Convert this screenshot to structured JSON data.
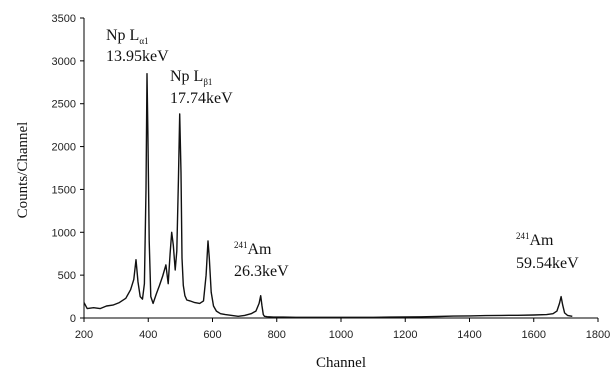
{
  "chart_data": {
    "type": "line",
    "xlabel": "Channel",
    "ylabel": "Counts/Channel",
    "xlim": [
      200,
      1800
    ],
    "ylim": [
      0,
      3500
    ],
    "xticks": [
      200,
      400,
      600,
      800,
      1000,
      1200,
      1400,
      1600,
      1800
    ],
    "yticks": [
      0,
      500,
      1000,
      1500,
      2000,
      2500,
      3000,
      3500
    ],
    "grid": false,
    "series": [
      {
        "x": [
          200,
          210,
          230,
          250,
          270,
          290,
          310,
          330,
          345,
          355,
          362,
          368,
          375,
          382,
          388,
          393,
          396,
          399,
          403,
          408,
          415,
          425,
          435,
          445,
          455,
          462,
          468,
          473,
          478,
          484,
          489,
          494,
          498,
          502,
          505,
          509,
          514,
          520,
          530,
          545,
          560,
          572,
          580,
          586,
          590,
          596,
          603,
          612,
          625,
          640,
          660,
          680,
          700,
          720,
          735,
          745,
          750,
          754,
          758,
          762,
          770,
          790,
          820,
          860,
          900,
          950,
          1000,
          1050,
          1100,
          1150,
          1200,
          1250,
          1300,
          1350,
          1400,
          1450,
          1500,
          1550,
          1600,
          1640,
          1660,
          1672,
          1680,
          1685,
          1690,
          1696,
          1705,
          1720
        ],
        "y": [
          180,
          110,
          120,
          110,
          140,
          150,
          180,
          230,
          330,
          450,
          680,
          420,
          250,
          220,
          400,
          1500,
          2850,
          2150,
          900,
          250,
          170,
          280,
          380,
          490,
          620,
          400,
          750,
          1000,
          850,
          560,
          780,
          1600,
          2380,
          1700,
          700,
          380,
          260,
          210,
          200,
          180,
          170,
          200,
          500,
          900,
          700,
          300,
          140,
          80,
          50,
          40,
          30,
          20,
          30,
          50,
          80,
          170,
          260,
          140,
          40,
          20,
          15,
          10,
          10,
          8,
          8,
          8,
          8,
          8,
          8,
          10,
          12,
          14,
          18,
          22,
          25,
          28,
          30,
          32,
          35,
          40,
          50,
          80,
          170,
          250,
          150,
          60,
          30,
          20
        ]
      }
    ],
    "annotations": [
      {
        "text": "Np L",
        "sub": "α1",
        "energy": "13.95keV"
      },
      {
        "text": "Np L",
        "sub": "β1",
        "energy": "17.74keV"
      },
      {
        "sup": "241",
        "text": "Am",
        "energy": "26.3keV"
      },
      {
        "sup": "241",
        "text": "Am",
        "energy": "59.54keV"
      }
    ]
  }
}
